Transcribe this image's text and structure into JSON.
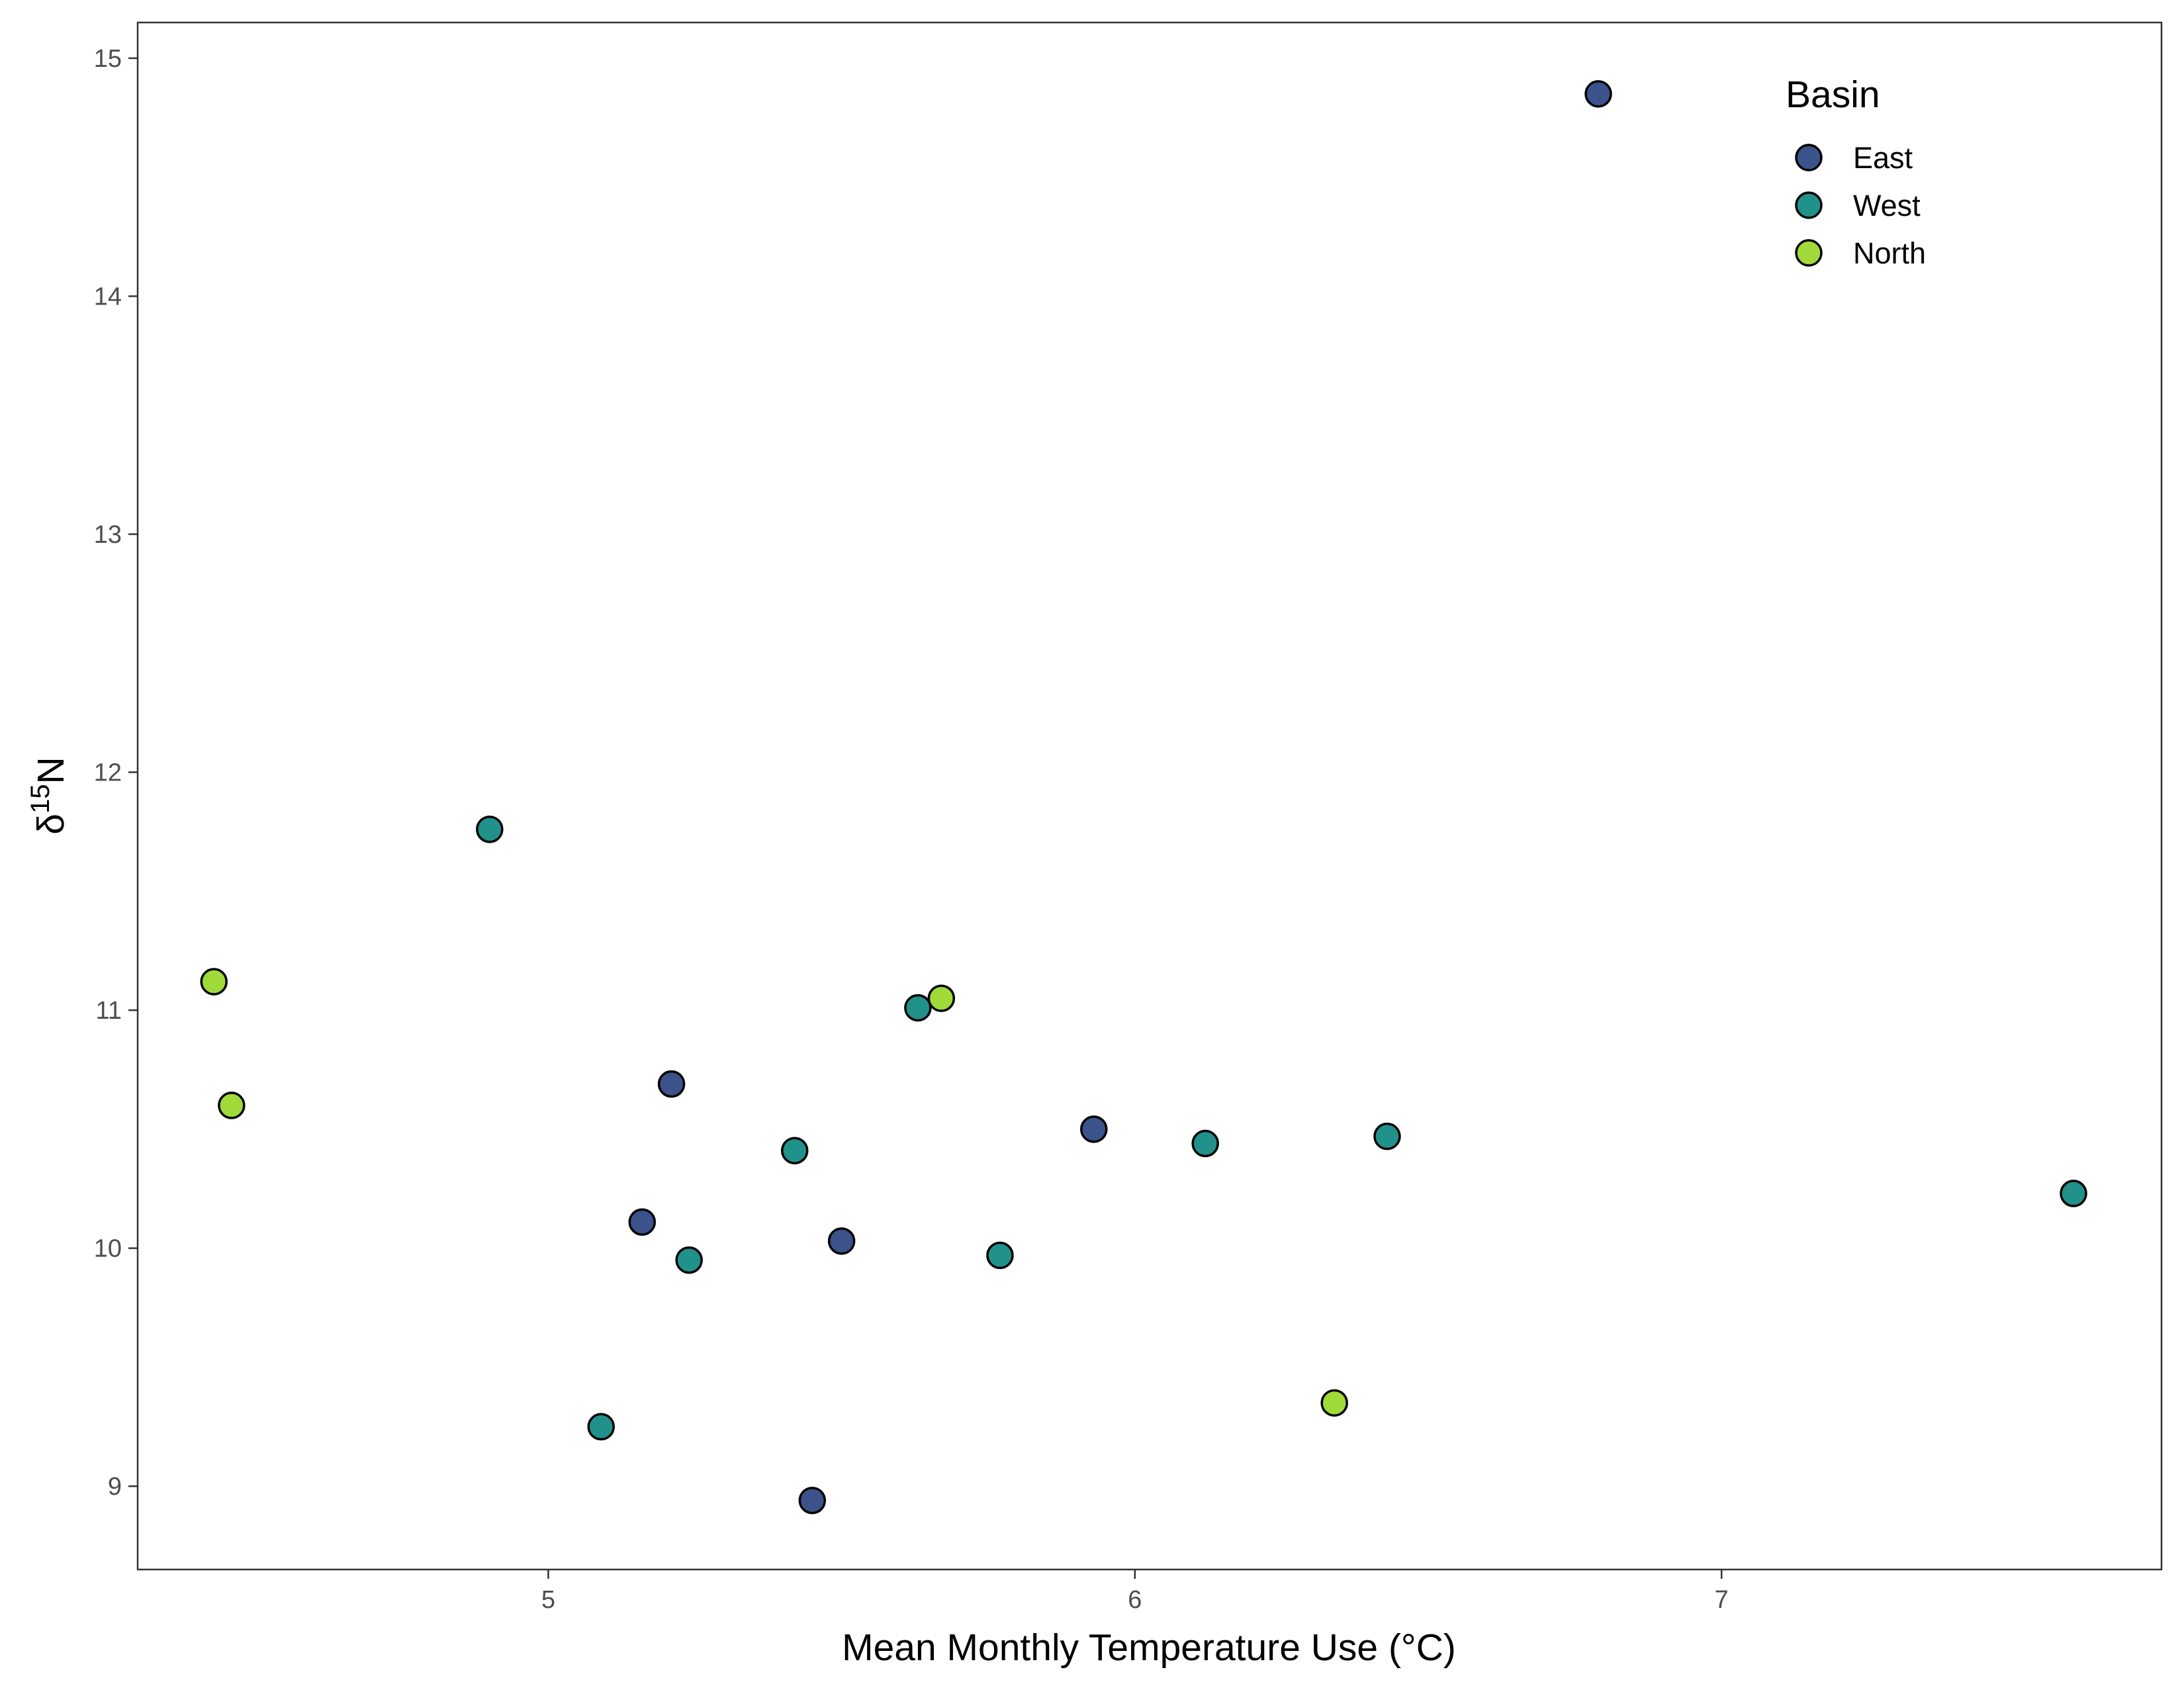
{
  "chart_data": {
    "type": "scatter",
    "xlabel": "Mean Monthly Temperature Use (°C)",
    "ylabel_prefix": "δ",
    "ylabel_superscript": "15",
    "ylabel_suffix": "N",
    "xlim": [
      4.3,
      7.75
    ],
    "ylim": [
      8.65,
      15.15
    ],
    "xticks": [
      "5",
      "6",
      "7"
    ],
    "yticks": [
      "9",
      "10",
      "11",
      "12",
      "13",
      "14",
      "15"
    ],
    "grid": false,
    "legend": {
      "title": "Basin",
      "placement": "top-right",
      "entries": [
        "East",
        "West",
        "North"
      ]
    },
    "series": [
      {
        "name": "East",
        "color": "#3b528b",
        "points": [
          [
            6.79,
            14.85
          ],
          [
            5.21,
            10.69
          ],
          [
            5.16,
            10.11
          ],
          [
            5.5,
            10.03
          ],
          [
            5.93,
            10.5
          ],
          [
            5.45,
            8.94
          ]
        ]
      },
      {
        "name": "West",
        "color": "#21918c",
        "points": [
          [
            4.9,
            11.76
          ],
          [
            5.63,
            11.01
          ],
          [
            5.42,
            10.41
          ],
          [
            6.12,
            10.44
          ],
          [
            6.43,
            10.47
          ],
          [
            7.6,
            10.23
          ],
          [
            5.24,
            9.95
          ],
          [
            5.77,
            9.97
          ],
          [
            5.09,
            9.25
          ]
        ]
      },
      {
        "name": "North",
        "color": "#a0da39",
        "points": [
          [
            4.43,
            11.12
          ],
          [
            4.46,
            10.6
          ],
          [
            5.67,
            11.05
          ],
          [
            6.34,
            9.35
          ]
        ]
      }
    ]
  }
}
